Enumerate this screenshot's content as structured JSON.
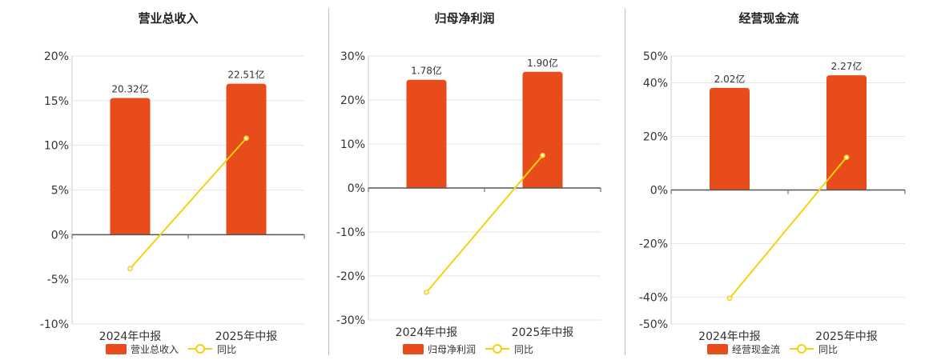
{
  "colors": {
    "bar": "#e84c1b",
    "line": "#f5d10f",
    "axis": "#555555",
    "grid": "#e6e6e6",
    "divider": "#bfbfbf",
    "text": "#333333"
  },
  "chart_data": [
    {
      "type": "bar",
      "title": "营业总收入",
      "categories": [
        "2024年中报",
        "2025年中报"
      ],
      "series": [
        {
          "name": "营业总收入",
          "type": "bar",
          "values": [
            15.3,
            16.9
          ],
          "labels": [
            "20.32亿",
            "22.51亿"
          ]
        },
        {
          "name": "同比",
          "type": "line",
          "values": [
            -3.8,
            10.8
          ]
        }
      ],
      "yticks": [
        -10,
        -5,
        0,
        5,
        10,
        15,
        20
      ],
      "ytick_labels": [
        "-10%",
        "-5%",
        "0%",
        "5%",
        "10%",
        "15%",
        "20%"
      ],
      "ylim": [
        -10,
        20
      ],
      "grid": true,
      "legend": "bottom"
    },
    {
      "type": "bar",
      "title": "归母净利润",
      "categories": [
        "2024年中报",
        "2025年中报"
      ],
      "series": [
        {
          "name": "归母净利润",
          "type": "bar",
          "values": [
            24.6,
            26.4
          ],
          "labels": [
            "1.78亿",
            "1.90亿"
          ]
        },
        {
          "name": "同比",
          "type": "line",
          "values": [
            -23.7,
            7.4
          ]
        }
      ],
      "yticks": [
        -30,
        -20,
        -10,
        0,
        10,
        20,
        30
      ],
      "ytick_labels": [
        "-30%",
        "-20%",
        "-10%",
        "0%",
        "10%",
        "20%",
        "30%"
      ],
      "ylim": [
        -30,
        30
      ],
      "grid": true,
      "legend": "bottom"
    },
    {
      "type": "bar",
      "title": "经营现金流",
      "categories": [
        "2024年中报",
        "2025年中报"
      ],
      "series": [
        {
          "name": "经营现金流",
          "type": "bar",
          "values": [
            38.1,
            42.8
          ],
          "labels": [
            "2.02亿",
            "2.27亿"
          ]
        },
        {
          "name": "同比",
          "type": "line",
          "values": [
            -40.4,
            12.2
          ]
        }
      ],
      "yticks": [
        -50,
        -40,
        -20,
        0,
        20,
        40,
        50
      ],
      "ytick_labels": [
        "-50%",
        "-40%",
        "-20%",
        "0%",
        "20%",
        "40%",
        "50%"
      ],
      "ylim": [
        -50,
        50
      ],
      "grid": true,
      "legend": "bottom"
    }
  ]
}
